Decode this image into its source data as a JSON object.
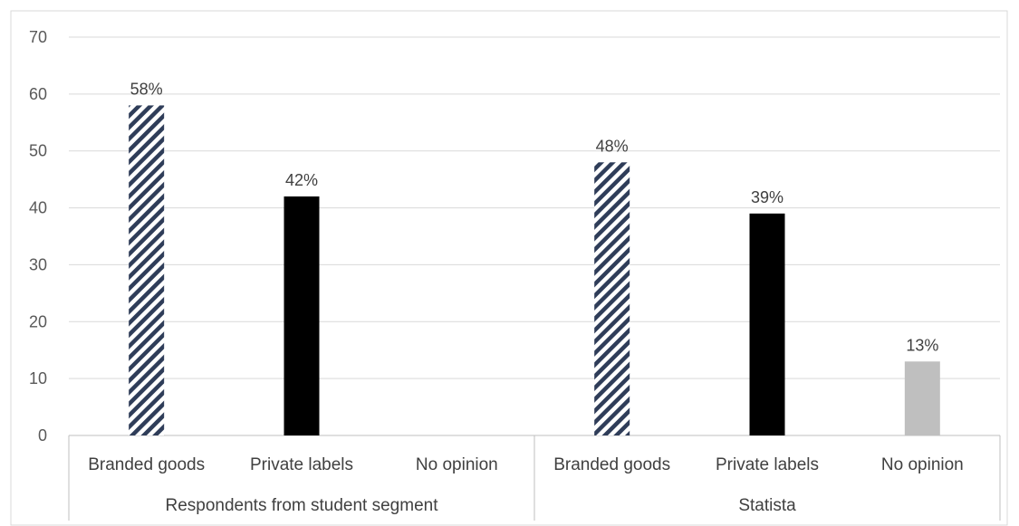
{
  "chart_data": {
    "type": "bar",
    "ylim": [
      0,
      70
    ],
    "yticks": [
      0,
      10,
      20,
      30,
      40,
      50,
      60,
      70
    ],
    "grid": true,
    "groups": [
      {
        "name": "Respondents from student segment",
        "bars": [
          {
            "category": "Branded goods",
            "value": 58,
            "label": "58%",
            "style": "hatched"
          },
          {
            "category": "Private labels",
            "value": 42,
            "label": "42%",
            "style": "solid-black"
          },
          {
            "category": "No opinion",
            "value": 0,
            "label": "",
            "style": "solid-gray"
          }
        ]
      },
      {
        "name": "Statista",
        "bars": [
          {
            "category": "Branded goods",
            "value": 48,
            "label": "48%",
            "style": "hatched"
          },
          {
            "category": "Private labels",
            "value": 39,
            "label": "39%",
            "style": "solid-black"
          },
          {
            "category": "No opinion",
            "value": 13,
            "label": "13%",
            "style": "solid-gray"
          }
        ]
      }
    ],
    "colors": {
      "hatch_dark": "#2f3d59",
      "hatch_light": "#ffffff",
      "solid_black": "#000000",
      "solid_gray": "#bfbfbf",
      "gridline": "#d9d9d9",
      "axis": "#bfbfbf"
    }
  }
}
